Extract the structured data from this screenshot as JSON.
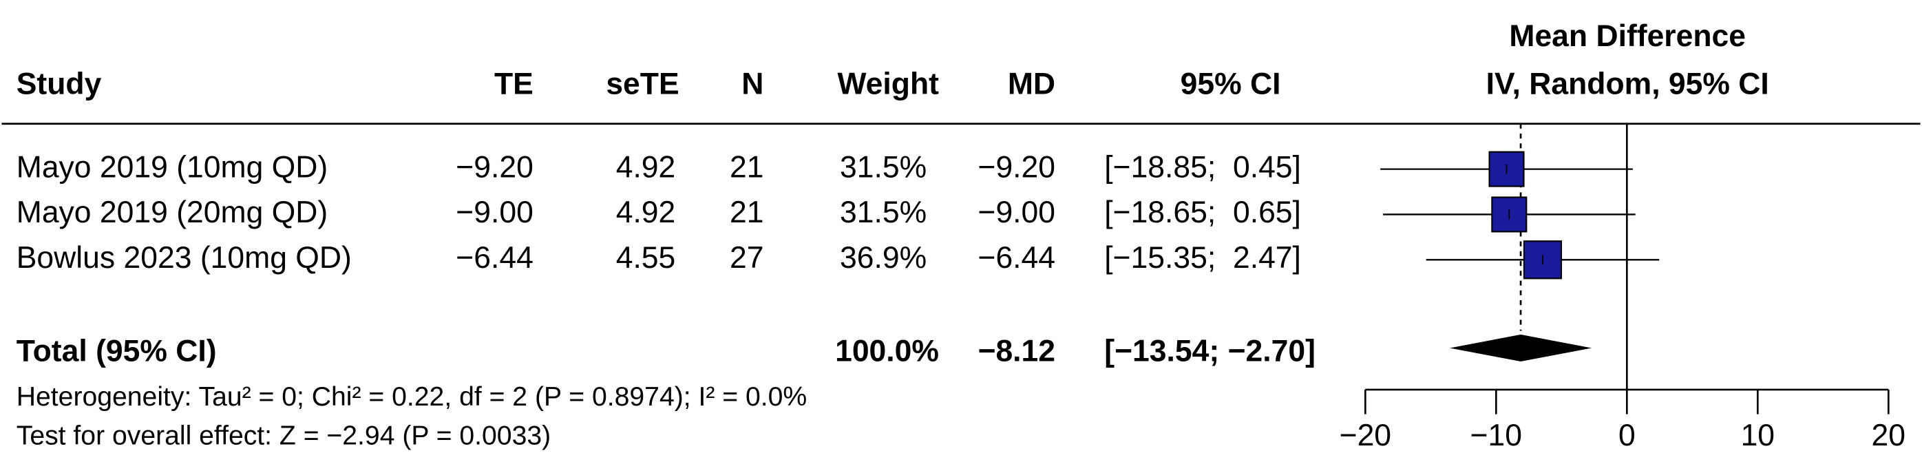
{
  "chart_data": {
    "type": "forest",
    "title": "Mean Difference",
    "subtitle": "IV, Random, 95% CI",
    "columns": [
      "Study",
      "TE",
      "seTE",
      "N",
      "Weight",
      "MD",
      "95% CI"
    ],
    "studies": [
      {
        "name": "Mayo 2019 (10mg QD)",
        "te": "−9.20",
        "sete": 4.92,
        "n": 21,
        "weight": 31.5,
        "weight_label": "31.5%",
        "md": -9.2,
        "md_label": "−9.20",
        "lower": -18.85,
        "upper": 0.45,
        "ci_label": "[−18.85;  0.45]"
      },
      {
        "name": "Mayo 2019 (20mg QD)",
        "te": "−9.00",
        "sete": 4.92,
        "n": 21,
        "weight": 31.5,
        "weight_label": "31.5%",
        "md": -9.0,
        "md_label": "−9.00",
        "lower": -18.65,
        "upper": 0.65,
        "ci_label": "[−18.65;  0.65]"
      },
      {
        "name": "Bowlus 2023 (10mg QD)",
        "te": "−6.44",
        "sete": 4.55,
        "n": 27,
        "weight": 36.9,
        "weight_label": "36.9%",
        "md": -6.44,
        "md_label": "−6.44",
        "lower": -15.35,
        "upper": 2.47,
        "ci_label": "[−15.35;  2.47]"
      }
    ],
    "total": {
      "name": "Total (95% CI)",
      "weight": 100.0,
      "weight_label": "100.0%",
      "md": -8.12,
      "md_label": "−8.12",
      "lower": -13.54,
      "upper": -2.7,
      "ci_label": "[−13.54; −2.70]"
    },
    "heterogeneity": "Heterogeneity: Tau² = 0; Chi² = 0.22, df = 2 (P = 0.8974); I² = 0.0%",
    "overall_test": "Test for overall effect: Z = −2.94 (P = 0.0033)",
    "xlim": [
      -20,
      20
    ],
    "xticks": [
      {
        "value": -20,
        "label": "−20"
      },
      {
        "value": -10,
        "label": "−10"
      },
      0,
      10,
      20
    ],
    "box_color": "#1a1a9c"
  }
}
